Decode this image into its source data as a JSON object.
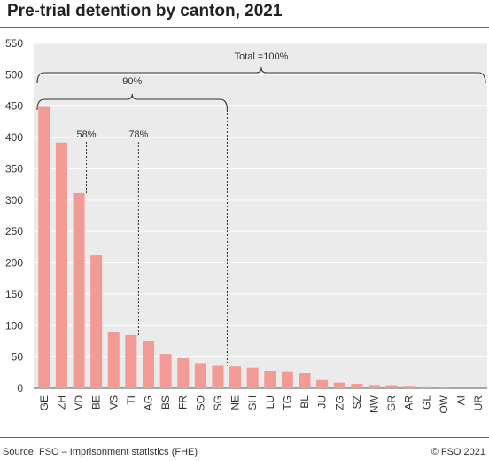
{
  "title": "Pre-trial detention by canton, 2021",
  "footer": {
    "source": "Source: FSO – Imprisonment statistics (FHE)",
    "copyright": "© FSO 2021"
  },
  "chart_data": {
    "type": "bar",
    "categories": [
      "GE",
      "ZH",
      "VD",
      "BE",
      "VS",
      "TI",
      "AG",
      "BS",
      "FR",
      "SO",
      "SG",
      "NE",
      "SH",
      "LU",
      "TG",
      "BL",
      "JU",
      "ZG",
      "SZ",
      "NW",
      "GR",
      "AR",
      "GL",
      "OW",
      "AI",
      "UR"
    ],
    "values": [
      449,
      392,
      311,
      212,
      90,
      85,
      75,
      55,
      48,
      39,
      36,
      35,
      33,
      27,
      26,
      24,
      13,
      9,
      7,
      5,
      5,
      4,
      3,
      2,
      0,
      0
    ],
    "ylim": [
      0,
      550
    ],
    "yticks": [
      0,
      50,
      100,
      150,
      200,
      250,
      300,
      350,
      400,
      450,
      500,
      550
    ],
    "grid": true,
    "bar_color": "#f29a94",
    "annotations": {
      "total_label": "Total =100%",
      "p90_label": "90%",
      "p58_label": "58%",
      "p78_label": "78%"
    }
  }
}
